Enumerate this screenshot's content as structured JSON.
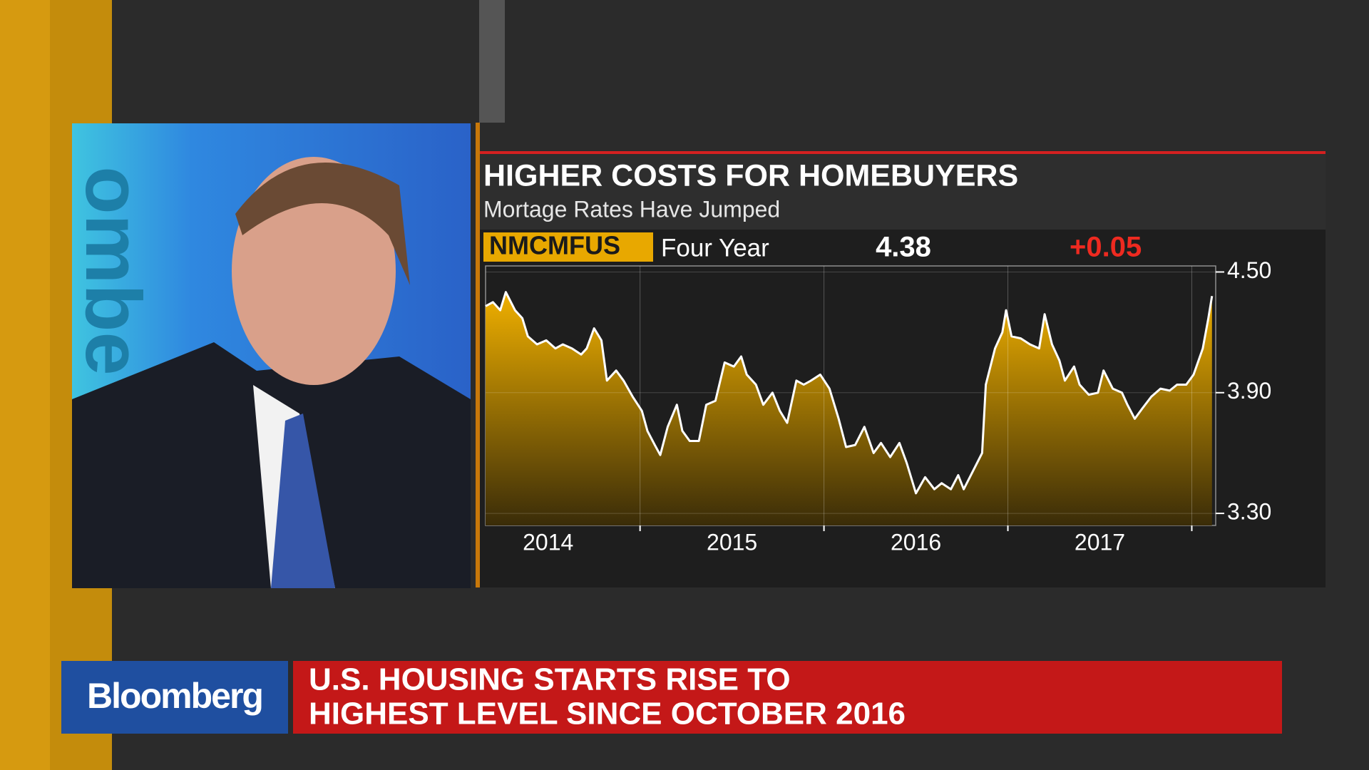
{
  "video": {
    "wall_text": "ombe"
  },
  "chart_data": {
    "type": "line",
    "title": "HIGHER COSTS FOR HOMEBUYERS",
    "subtitle": "Mortage Rates Have Jumped",
    "ticker": "NMCMFUS",
    "period": "Four Year",
    "last": 4.38,
    "change": {
      "value": 0.05,
      "label": "+0.05"
    },
    "color": "#ffffff",
    "fill": "#e8a800",
    "x": [
      2014.16,
      2014.2,
      2014.24,
      2014.27,
      2014.32,
      2014.36,
      2014.39,
      2014.44,
      2014.49,
      2014.54,
      2014.58,
      2014.63,
      2014.68,
      2014.71,
      2014.75,
      2014.79,
      2014.82,
      2014.87,
      2014.91,
      2014.96,
      2015.01,
      2015.04,
      2015.08,
      2015.11,
      2015.15,
      2015.2,
      2015.23,
      2015.27,
      2015.32,
      2015.36,
      2015.41,
      2015.46,
      2015.51,
      2015.55,
      2015.58,
      2015.63,
      2015.67,
      2015.72,
      2015.76,
      2015.8,
      2015.85,
      2015.89,
      2015.93,
      2015.98,
      2016.03,
      2016.08,
      2016.12,
      2016.17,
      2016.22,
      2016.27,
      2016.31,
      2016.36,
      2016.41,
      2016.45,
      2016.5,
      2016.55,
      2016.6,
      2016.64,
      2016.69,
      2016.73,
      2016.76,
      2016.81,
      2016.86,
      2016.88,
      2016.93,
      2016.97,
      2016.99,
      2017.02,
      2017.07,
      2017.12,
      2017.17,
      2017.2,
      2017.24,
      2017.28,
      2017.31,
      2017.36,
      2017.39,
      2017.44,
      2017.49,
      2017.52,
      2017.57,
      2017.62,
      2017.65,
      2017.69,
      2017.73,
      2017.78,
      2017.83,
      2017.88,
      2017.92,
      2017.97,
      2018.01,
      2018.06,
      2018.09,
      2018.11
    ],
    "values": [
      4.33,
      4.35,
      4.31,
      4.4,
      4.31,
      4.27,
      4.18,
      4.14,
      4.16,
      4.12,
      4.14,
      4.12,
      4.09,
      4.12,
      4.22,
      4.16,
      3.96,
      4.01,
      3.96,
      3.88,
      3.81,
      3.71,
      3.64,
      3.59,
      3.73,
      3.84,
      3.71,
      3.66,
      3.66,
      3.84,
      3.86,
      4.05,
      4.03,
      4.08,
      3.99,
      3.94,
      3.84,
      3.9,
      3.81,
      3.75,
      3.96,
      3.94,
      3.96,
      3.99,
      3.92,
      3.77,
      3.63,
      3.64,
      3.73,
      3.6,
      3.65,
      3.58,
      3.65,
      3.55,
      3.4,
      3.48,
      3.42,
      3.45,
      3.42,
      3.49,
      3.42,
      3.51,
      3.6,
      3.94,
      4.12,
      4.2,
      4.31,
      4.18,
      4.17,
      4.14,
      4.12,
      4.29,
      4.14,
      4.06,
      3.96,
      4.03,
      3.94,
      3.89,
      3.9,
      4.01,
      3.92,
      3.9,
      3.84,
      3.77,
      3.82,
      3.88,
      3.92,
      3.91,
      3.94,
      3.94,
      3.99,
      4.12,
      4.27,
      4.38
    ],
    "xlim": [
      2014.16,
      2018.13
    ],
    "xticks": [
      {
        "value": 2014.5,
        "label": "2014"
      },
      {
        "value": 2015.5,
        "label": "2015"
      },
      {
        "value": 2016.5,
        "label": "2016"
      },
      {
        "value": 2017.5,
        "label": "2017"
      }
    ],
    "xgrid": [
      2015,
      2016,
      2017,
      2018
    ],
    "ylim": [
      3.24,
      4.53
    ],
    "yticks": [
      {
        "value": 4.5,
        "label": "4.50"
      },
      {
        "value": 3.9,
        "label": "3.90"
      },
      {
        "value": 3.3,
        "label": "3.30"
      }
    ],
    "grid": true
  },
  "banner": {
    "brand": "Bloomberg",
    "headline": [
      "U.S. HOUSING STARTS RISE TO",
      "HIGHEST LEVEL SINCE OCTOBER 2016"
    ]
  }
}
